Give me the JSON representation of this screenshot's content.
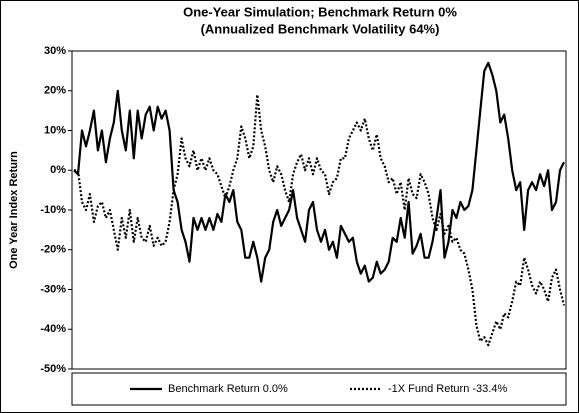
{
  "chart_data": {
    "type": "line",
    "title": "One-Year Simulation; Benchmark Return 0%",
    "subtitle": "(Annualized Benchmark Volatility 64%)",
    "y_label": "One Year Index Return",
    "ylim": [
      -50,
      30
    ],
    "yticks": [
      {
        "value": -50,
        "label": "-50%"
      },
      {
        "value": -40,
        "label": "-40%"
      },
      {
        "value": -30,
        "label": "-30%"
      },
      {
        "value": -20,
        "label": "-20%"
      },
      {
        "value": -10,
        "label": "-10%"
      },
      {
        "value": 0,
        "label": "0%"
      },
      {
        "value": 10,
        "label": "10%"
      },
      {
        "value": 20,
        "label": "20%"
      },
      {
        "value": 30,
        "label": "30%"
      }
    ],
    "legend": "bottom",
    "series": [
      {
        "name": "Benchmark Return 0.0%",
        "color": "#000000",
        "style": "solid",
        "values": [
          0,
          -1,
          10,
          6,
          10,
          15,
          5,
          10,
          2,
          8,
          12,
          20,
          10,
          5,
          15,
          3,
          15,
          8,
          14,
          16,
          10,
          16,
          13,
          15,
          10,
          -5,
          -8,
          -15,
          -18,
          -23,
          -12,
          -15,
          -12,
          -15,
          -12,
          -15,
          -11,
          -13,
          -6,
          -8,
          -5,
          -13,
          -15,
          -22,
          -22,
          -18,
          -22,
          -28,
          -22,
          -20,
          -13,
          -10,
          -14,
          -12,
          -10,
          -5,
          -12,
          -15,
          -18,
          -10,
          -8,
          -15,
          -18,
          -15,
          -20,
          -18,
          -22,
          -14,
          -16,
          -18,
          -17,
          -23,
          -26,
          -24,
          -28,
          -27,
          -23,
          -26,
          -25,
          -23,
          -17,
          -18,
          -12,
          -17,
          -8,
          -21,
          -19,
          -16,
          -22,
          -22,
          -18,
          -12,
          -5,
          -22,
          -18,
          -10,
          -12,
          -8,
          -10,
          -9,
          -5,
          5,
          15,
          25,
          27,
          24,
          20,
          12,
          14,
          8,
          0,
          -5,
          -3,
          -15,
          -5,
          -3,
          -5,
          -1,
          -4,
          0,
          -10,
          -8,
          0,
          2
        ]
      },
      {
        "name": "-1X Fund Return -33.4%",
        "color": "#000000",
        "style": "dotted",
        "values": [
          0,
          0,
          -8,
          -10,
          -6,
          -13,
          -9,
          -8,
          -12,
          -10,
          -15,
          -20,
          -12,
          -17,
          -10,
          -18,
          -12,
          -17,
          -18,
          -14,
          -19,
          -17,
          -19,
          -18,
          -13,
          -5,
          -1,
          8,
          3,
          1,
          5,
          0,
          3,
          0,
          3,
          0,
          -1,
          -4,
          -7,
          -4,
          0,
          3,
          11,
          8,
          3,
          6,
          19,
          10,
          6,
          0,
          -3,
          1,
          -1,
          -5,
          -8,
          -1,
          2,
          4,
          0,
          3,
          -1,
          3,
          0,
          -1,
          -6,
          -3,
          -2,
          3,
          3,
          8,
          10,
          12,
          10,
          13,
          8,
          5,
          9,
          3,
          1,
          -3,
          -2,
          -6,
          -3,
          -10,
          -2,
          -6,
          -7,
          -1,
          -3,
          -6,
          -12,
          -15,
          -11,
          -16,
          -14,
          -18,
          -17,
          -20,
          -21,
          -25,
          -30,
          -39,
          -43,
          -42,
          -44,
          -41,
          -38,
          -40,
          -36,
          -37,
          -33,
          -28,
          -29,
          -22,
          -25,
          -29,
          -31,
          -28,
          -30,
          -33,
          -27,
          -25,
          -30,
          -34
        ]
      }
    ]
  }
}
